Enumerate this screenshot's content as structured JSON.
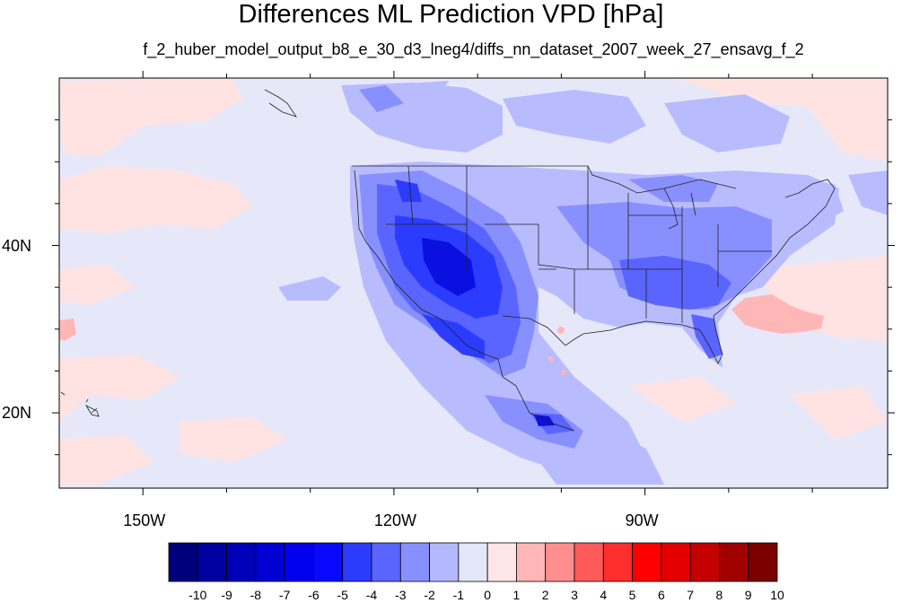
{
  "title": "Differences ML Prediction VPD [hPa]",
  "subtitle": "f_2_huber_model_output_b8_e_30_d3_lneg4/diffs_nn_dataset_2007_week_27_ensavg_f_2",
  "lon_ticks": [
    {
      "lon": -150,
      "label": "150W"
    },
    {
      "lon": -120,
      "label": "120W"
    },
    {
      "lon": -90,
      "label": "90W"
    }
  ],
  "lat_ticks": [
    {
      "lat": 40,
      "label": "40N"
    },
    {
      "lat": 20,
      "label": "20N"
    }
  ],
  "map_extent": {
    "lon_min": -160,
    "lon_max": -61,
    "lat_min": 11,
    "lat_max": 60
  },
  "colorbar": {
    "labels": [
      "-10",
      "-9",
      "-8",
      "-7",
      "-6",
      "-5",
      "-4",
      "-3",
      "-2",
      "-1",
      "0",
      "1",
      "2",
      "3",
      "4",
      "5",
      "6",
      "7",
      "8",
      "9",
      "10"
    ],
    "colors": [
      "#00007a",
      "#00009e",
      "#0000b8",
      "#0000d4",
      "#0000ee",
      "#0808ff",
      "#2c3cff",
      "#5a64ff",
      "#8890ff",
      "#b4b8ff",
      "#e4e6fa",
      "#ffe6e6",
      "#ffb6b6",
      "#ff8e8e",
      "#ff5a5a",
      "#ff2e2e",
      "#ff0000",
      "#e40000",
      "#c40000",
      "#a00000",
      "#7a0000"
    ]
  },
  "field_colors": {
    "ocean": "#e6e8fa",
    "neg1": "#b8bcff",
    "neg2": "#8890ff",
    "neg3": "#5a64ff",
    "neg4": "#2c3cff",
    "neg5": "#0a10e0",
    "pos1": "#ffe2e2",
    "pos2": "#ffb6b6"
  }
}
